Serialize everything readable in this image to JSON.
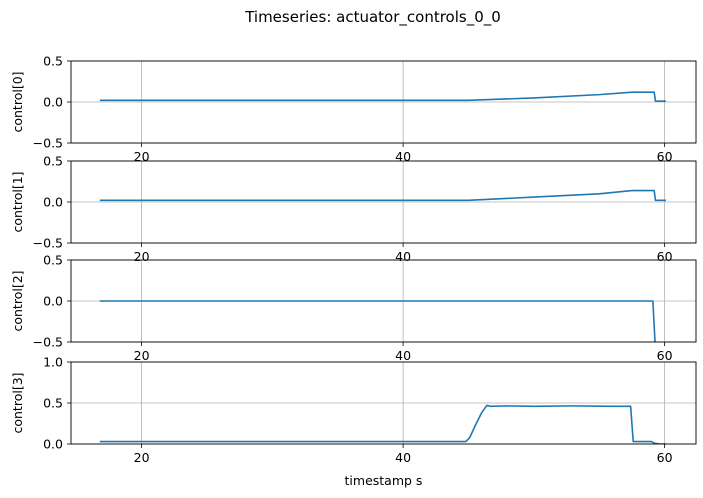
{
  "title": "Timeseries: actuator_controls_0_0",
  "chart_data": [
    {
      "type": "line",
      "ylabel": "control[0]",
      "xlabel": "",
      "xlim": [
        14.6,
        62.4
      ],
      "ylim": [
        -0.5,
        0.5
      ],
      "xticks": [
        20,
        40,
        60
      ],
      "xtick_labels": [
        "20",
        "40",
        "60"
      ],
      "yticks": [
        -0.5,
        0.0,
        0.5
      ],
      "ytick_labels": [
        "−0.5",
        "0.0",
        "0.5"
      ],
      "grid": true,
      "color": "#1f77b4",
      "series": [
        {
          "x": [
            16.8,
            20,
            30,
            40,
            45,
            50,
            55,
            57.5,
            59.2,
            59.3,
            60.1
          ],
          "y": [
            0.02,
            0.02,
            0.02,
            0.02,
            0.02,
            0.05,
            0.09,
            0.12,
            0.12,
            0.01,
            0.01
          ]
        }
      ]
    },
    {
      "type": "line",
      "ylabel": "control[1]",
      "xlabel": "",
      "xlim": [
        14.6,
        62.4
      ],
      "ylim": [
        -0.5,
        0.5
      ],
      "xticks": [
        20,
        40,
        60
      ],
      "xtick_labels": [
        "20",
        "40",
        "60"
      ],
      "yticks": [
        -0.5,
        0.0,
        0.5
      ],
      "ytick_labels": [
        "−0.5",
        "0.0",
        "0.5"
      ],
      "grid": true,
      "color": "#1f77b4",
      "series": [
        {
          "x": [
            16.8,
            20,
            30,
            40,
            45,
            50,
            55,
            57.5,
            59.2,
            59.3,
            60.1
          ],
          "y": [
            0.02,
            0.02,
            0.02,
            0.02,
            0.02,
            0.06,
            0.1,
            0.14,
            0.14,
            0.02,
            0.02
          ]
        }
      ]
    },
    {
      "type": "line",
      "ylabel": "control[2]",
      "xlabel": "",
      "xlim": [
        14.6,
        62.4
      ],
      "ylim": [
        -0.5,
        0.5
      ],
      "xticks": [
        20,
        40,
        60
      ],
      "xtick_labels": [
        "20",
        "40",
        "60"
      ],
      "yticks": [
        -0.5,
        0.0,
        0.5
      ],
      "ytick_labels": [
        "−0.5",
        "0.0",
        "0.5"
      ],
      "grid": true,
      "color": "#1f77b4",
      "series": [
        {
          "x": [
            16.8,
            20,
            30,
            40,
            50,
            58.5,
            59.1,
            59.3
          ],
          "y": [
            0.0,
            0.0,
            0.0,
            0.0,
            0.0,
            0.0,
            0.0,
            -0.6
          ]
        }
      ]
    },
    {
      "type": "line",
      "ylabel": "control[3]",
      "xlabel": "timestamp s",
      "xlim": [
        14.6,
        62.4
      ],
      "ylim": [
        0.0,
        1.0
      ],
      "xticks": [
        20,
        40,
        60
      ],
      "xtick_labels": [
        "20",
        "40",
        "60"
      ],
      "yticks": [
        0.0,
        0.5,
        1.0
      ],
      "ytick_labels": [
        "0.0",
        "0.5",
        "1.0"
      ],
      "grid": true,
      "color": "#1f77b4",
      "series": [
        {
          "x": [
            16.8,
            20,
            30,
            40,
            44.8,
            45.1,
            45.5,
            46.0,
            46.4,
            46.7,
            48,
            50,
            53,
            56,
            57.4,
            57.6,
            58.0,
            59.0,
            59.2,
            59.6,
            60.1
          ],
          "y": [
            0.03,
            0.03,
            0.03,
            0.03,
            0.03,
            0.08,
            0.22,
            0.38,
            0.47,
            0.46,
            0.465,
            0.46,
            0.465,
            0.46,
            0.46,
            0.03,
            0.03,
            0.03,
            0.01,
            0.0,
            0.0
          ]
        }
      ]
    }
  ]
}
